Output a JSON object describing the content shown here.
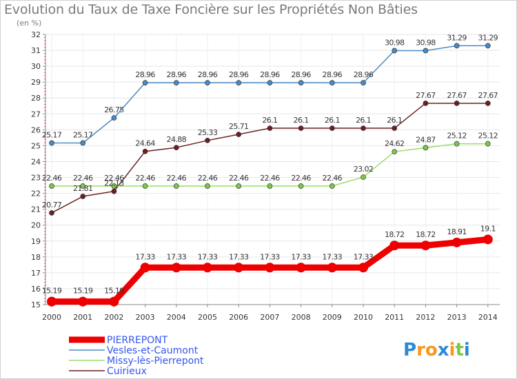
{
  "chart_data": {
    "type": "line",
    "title": "Evolution du Taux de Taxe Foncière sur les Propriétés Non Bâties",
    "ylabel": "(en %)",
    "xlabel": "",
    "ylim": [
      15,
      32
    ],
    "yticks": [
      "15",
      "16",
      "17",
      "18",
      "19",
      "20",
      "21",
      "22",
      "23",
      "24",
      "25",
      "26",
      "27",
      "28",
      "29",
      "30",
      "31",
      "32"
    ],
    "categories": [
      "2000",
      "2001",
      "2002",
      "2003",
      "2004",
      "2005",
      "2006",
      "2007",
      "2008",
      "2009",
      "2010",
      "2011",
      "2012",
      "2013",
      "2014"
    ],
    "series": [
      {
        "name": "Vesles-et-Caumont",
        "color": "#4a8ac4",
        "marker": "#4a8ac4",
        "values": [
          25.17,
          25.17,
          26.75,
          28.96,
          28.96,
          28.96,
          28.96,
          28.96,
          28.96,
          28.96,
          28.96,
          30.98,
          30.98,
          31.29,
          31.29
        ],
        "labels": [
          "25.17",
          "25.17",
          "26.75",
          "28.96",
          "28.96",
          "28.96",
          "28.96",
          "28.96",
          "28.96",
          "28.96",
          "28.96",
          "30.98",
          "30.98",
          "31.29",
          "31.29"
        ]
      },
      {
        "name": "Cuirieux",
        "color": "#6b1f1f",
        "marker": "#6b1f1f",
        "values": [
          20.77,
          21.81,
          22.13,
          24.64,
          24.88,
          25.33,
          25.71,
          26.1,
          26.1,
          26.1,
          26.1,
          26.1,
          27.67,
          27.67,
          27.67
        ],
        "labels": [
          "20.77",
          "21.81",
          "22.13",
          "24.64",
          "24.88",
          "25.33",
          "25.71",
          "26.1",
          "26.1",
          "26.1",
          "26.1",
          "26.1",
          "27.67",
          "27.67",
          "27.67"
        ]
      },
      {
        "name": "Missy-lès-Pierrepont",
        "color": "#99dd66",
        "marker": "#7cc84a",
        "values": [
          22.46,
          22.46,
          22.46,
          22.46,
          22.46,
          22.46,
          22.46,
          22.46,
          22.46,
          22.46,
          23.02,
          24.62,
          24.87,
          25.12,
          25.12
        ],
        "labels": [
          "22.46",
          "22.46",
          "22.46",
          "22.46",
          "22.46",
          "22.46",
          "22.46",
          "22.46",
          "22.46",
          "22.46",
          "23.02",
          "24.62",
          "24.87",
          "25.12",
          "25.12"
        ]
      },
      {
        "name": "PIERREPONT",
        "color": "#ee0000",
        "marker": "#ee0000",
        "values": [
          15.19,
          15.19,
          15.19,
          17.33,
          17.33,
          17.33,
          17.33,
          17.33,
          17.33,
          17.33,
          17.33,
          18.72,
          18.72,
          18.91,
          19.1
        ],
        "labels": [
          "15.19",
          "15.19",
          "15.19",
          "17.33",
          "17.33",
          "17.33",
          "17.33",
          "17.33",
          "17.33",
          "17.33",
          "17.33",
          "18.72",
          "18.72",
          "18.91",
          "19.1"
        ]
      }
    ],
    "legend": [
      {
        "name": "PIERREPONT",
        "color": "#ee0000",
        "text_color": "#3355ee"
      },
      {
        "name": "Vesles-et-Caumont",
        "color": "#4a8ac4",
        "text_color": "#3355ee"
      },
      {
        "name": "Missy-lès-Pierrepont",
        "color": "#99dd66",
        "text_color": "#3355ee"
      },
      {
        "name": "Cuirieux",
        "color": "#6b1f1f",
        "text_color": "#3355ee"
      }
    ],
    "legend_position": "bottom-left",
    "grid": true
  },
  "brand": {
    "letters": [
      "P",
      "r",
      "o",
      "x",
      "i",
      "t",
      "i"
    ],
    "colors": [
      "#2a8ad6",
      "#f59a1b",
      "#f59a1b",
      "#2a8ad6",
      "#f59a1b",
      "#7cc84a",
      "#2a8ad6"
    ]
  }
}
